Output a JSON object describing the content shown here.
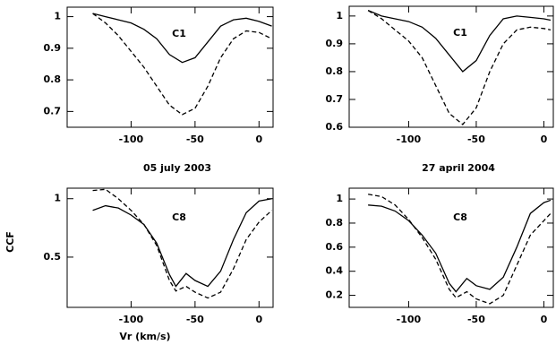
{
  "chart_data": [
    {
      "type": "line",
      "annotation": "C1",
      "caption": "05 july 2003",
      "x": [
        -130,
        -120,
        -110,
        -100,
        -90,
        -80,
        -70,
        -60,
        -50,
        -40,
        -30,
        -20,
        -10,
        0,
        10
      ],
      "series": [
        {
          "style": "solid",
          "color": "#000000",
          "values": [
            1.01,
            1.0,
            0.99,
            0.98,
            0.96,
            0.93,
            0.88,
            0.855,
            0.87,
            0.92,
            0.97,
            0.99,
            0.995,
            0.985,
            0.97
          ]
        },
        {
          "style": "dashed",
          "color": "#000000",
          "values": [
            1.01,
            0.98,
            0.94,
            0.89,
            0.84,
            0.78,
            0.72,
            0.69,
            0.71,
            0.78,
            0.87,
            0.93,
            0.955,
            0.95,
            0.93
          ]
        }
      ],
      "xlim": [
        -150,
        11
      ],
      "xticks": [
        -100,
        -50,
        0
      ],
      "ylim": [
        0.65,
        1.03
      ],
      "yticks": [
        0.7,
        0.8,
        0.9,
        1
      ]
    },
    {
      "type": "line",
      "annotation": "C1",
      "caption": "27 april 2004",
      "x": [
        -130,
        -120,
        -110,
        -100,
        -90,
        -80,
        -70,
        -60,
        -50,
        -40,
        -30,
        -20,
        -10,
        0,
        5
      ],
      "series": [
        {
          "style": "solid",
          "color": "#000000",
          "values": [
            1.02,
            1.0,
            0.99,
            0.98,
            0.96,
            0.92,
            0.86,
            0.8,
            0.84,
            0.93,
            0.99,
            1.0,
            0.995,
            0.99,
            0.985
          ]
        },
        {
          "style": "dashed",
          "color": "#000000",
          "values": [
            1.02,
            0.99,
            0.95,
            0.91,
            0.85,
            0.75,
            0.65,
            0.61,
            0.67,
            0.8,
            0.9,
            0.95,
            0.96,
            0.955,
            0.95
          ]
        }
      ],
      "xlim": [
        -144,
        7
      ],
      "xticks": [
        -100,
        -50,
        0
      ],
      "ylim": [
        0.6,
        1.035
      ],
      "yticks": [
        0.6,
        0.7,
        0.8,
        0.9,
        1
      ]
    },
    {
      "type": "line",
      "annotation": "C8",
      "xlabel": "Vr (km/s)",
      "ylabel": "CCF",
      "x": [
        -130,
        -120,
        -110,
        -100,
        -90,
        -80,
        -70,
        -65,
        -57,
        -50,
        -40,
        -30,
        -20,
        -10,
        0,
        10
      ],
      "series": [
        {
          "style": "solid",
          "color": "#000000",
          "values": [
            0.9,
            0.94,
            0.92,
            0.86,
            0.78,
            0.62,
            0.35,
            0.25,
            0.36,
            0.3,
            0.25,
            0.38,
            0.65,
            0.88,
            0.98,
            1.0
          ]
        },
        {
          "style": "dashed",
          "color": "#000000",
          "values": [
            1.07,
            1.08,
            1.0,
            0.9,
            0.78,
            0.6,
            0.3,
            0.21,
            0.25,
            0.2,
            0.15,
            0.2,
            0.4,
            0.65,
            0.8,
            0.9
          ]
        }
      ],
      "xlim": [
        -150,
        11
      ],
      "xticks": [
        -100,
        -50,
        0
      ],
      "ylim": [
        0.07,
        1.09
      ],
      "yticks": [
        0.5,
        1
      ]
    },
    {
      "type": "line",
      "annotation": "C8",
      "x": [
        -130,
        -120,
        -110,
        -100,
        -90,
        -80,
        -70,
        -65,
        -57,
        -50,
        -40,
        -30,
        -20,
        -10,
        0,
        5
      ],
      "series": [
        {
          "style": "solid",
          "color": "#000000",
          "values": [
            0.95,
            0.94,
            0.9,
            0.82,
            0.7,
            0.55,
            0.3,
            0.23,
            0.34,
            0.28,
            0.25,
            0.35,
            0.6,
            0.88,
            0.97,
            0.99
          ]
        },
        {
          "style": "dashed",
          "color": "#000000",
          "values": [
            1.04,
            1.02,
            0.95,
            0.83,
            0.68,
            0.5,
            0.25,
            0.18,
            0.23,
            0.17,
            0.13,
            0.2,
            0.45,
            0.7,
            0.82,
            0.88
          ]
        }
      ],
      "xlim": [
        -144,
        7
      ],
      "xticks": [
        -100,
        -50,
        0
      ],
      "ylim": [
        0.1,
        1.09
      ],
      "yticks": [
        0.2,
        0.4,
        0.6,
        0.8,
        1
      ]
    }
  ]
}
